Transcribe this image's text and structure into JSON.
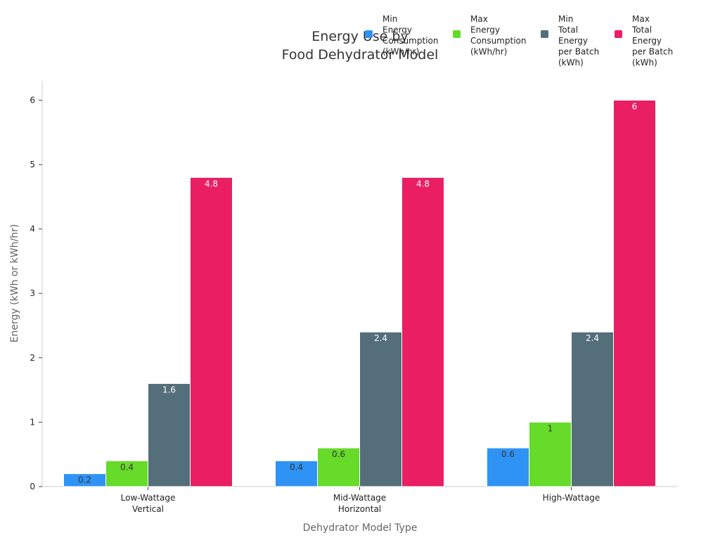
{
  "chart_data": {
    "type": "bar",
    "title": [
      "Energy Use by",
      "Food Dehydrator Model"
    ],
    "xlabel": "Dehydrator Model Type",
    "ylabel": "Energy (kWh or kWh/hr)",
    "ylim": [
      0,
      6.3
    ],
    "yticks": [
      "0",
      "1",
      "2",
      "3",
      "4",
      "5",
      "6"
    ],
    "categories": [
      [
        "Low-Wattage",
        "Vertical"
      ],
      [
        "Mid-Wattage",
        "Horizontal"
      ],
      [
        "High-Wattage"
      ]
    ],
    "series": [
      {
        "name": [
          "Min",
          "Energy",
          "Consumption",
          "(kWh/hr)"
        ],
        "color": "#2f93f5",
        "label_color": "#333333",
        "values": [
          0.2,
          0.4,
          0.6
        ],
        "labels": [
          "0.2",
          "0.4",
          "0.6"
        ]
      },
      {
        "name": [
          "Max",
          "Energy",
          "Consumption",
          "(kWh/hr)"
        ],
        "color": "#66db2a",
        "label_color": "#333333",
        "values": [
          0.4,
          0.6,
          1
        ],
        "labels": [
          "0.4",
          "0.6",
          "1"
        ]
      },
      {
        "name": [
          "Min",
          "Total",
          "Energy",
          "per Batch",
          "(kWh)"
        ],
        "color": "#546e7a",
        "label_color": "#ffffff",
        "values": [
          1.6,
          2.4,
          2.4
        ],
        "labels": [
          "1.6",
          "2.4",
          "2.4"
        ]
      },
      {
        "name": [
          "Max",
          "Total",
          "Energy",
          "per Batch",
          "(kWh)"
        ],
        "color": "#e91e63",
        "label_color": "#ffffff",
        "values": [
          4.8,
          4.8,
          6
        ],
        "labels": [
          "4.8",
          "4.8",
          "6"
        ]
      }
    ],
    "grid": false,
    "legend": "top-right"
  }
}
